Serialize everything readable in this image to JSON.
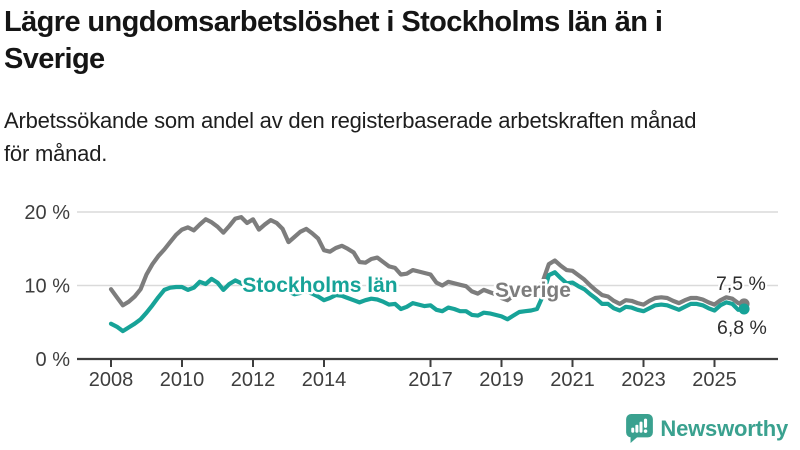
{
  "header": {
    "title_lines": [
      "Lägre ungdomsarbetslöshet i Stockholms län än i",
      "Sverige"
    ],
    "subtitle_lines": [
      "Arbetssökande som andel av den registerbaserade arbetskraften månad",
      "för månad."
    ]
  },
  "footer": {
    "brand": "Newsworthy",
    "brand_color": "#3aa18f",
    "logo_icon": "speech-bubble-bar-chart-exclamation-icon"
  },
  "chart_data": {
    "type": "line",
    "x_unit": "decimal year (monthly data sampled every 2 months)",
    "x_start": 2008.0,
    "x_step_years": 0.16667,
    "ylim": [
      0,
      21.5
    ],
    "grid": "horizontal",
    "legend_position": "inline-labels",
    "yticks": [
      {
        "value": 0,
        "label": "0 %"
      },
      {
        "value": 10,
        "label": "10 %"
      },
      {
        "value": 20,
        "label": "20 %"
      }
    ],
    "xticks": [
      {
        "value": 2008,
        "label": "2008"
      },
      {
        "value": 2010,
        "label": "2010"
      },
      {
        "value": 2012,
        "label": "2012"
      },
      {
        "value": 2014,
        "label": "2014"
      },
      {
        "value": 2017,
        "label": "2017"
      },
      {
        "value": 2019,
        "label": "2019"
      },
      {
        "value": 2021,
        "label": "2021"
      },
      {
        "value": 2023,
        "label": "2023"
      },
      {
        "value": 2025,
        "label": "2025"
      }
    ],
    "series": [
      {
        "key": "sverige",
        "name": "Sverige",
        "color": "#7d7d7d",
        "end_label": "7,5 %",
        "values": [
          9.5,
          8.4,
          7.3,
          7.8,
          8.5,
          9.5,
          11.5,
          12.9,
          14.0,
          14.9,
          15.9,
          16.9,
          17.6,
          17.9,
          17.5,
          18.3,
          19.0,
          18.6,
          18.0,
          17.2,
          18.1,
          19.1,
          19.3,
          18.5,
          19.0,
          17.6,
          18.3,
          18.9,
          18.5,
          17.7,
          15.9,
          16.6,
          17.3,
          17.7,
          17.1,
          16.4,
          14.8,
          14.6,
          15.1,
          15.4,
          15.0,
          14.5,
          13.2,
          13.1,
          13.6,
          13.8,
          13.2,
          12.6,
          12.4,
          11.5,
          11.6,
          12.1,
          11.9,
          11.7,
          11.5,
          10.4,
          10.0,
          10.5,
          10.3,
          10.1,
          9.9,
          9.2,
          8.9,
          9.4,
          9.1,
          8.8,
          8.3,
          8.0,
          8.6,
          9.0,
          8.9,
          9.0,
          9.3,
          10.6,
          12.9,
          13.4,
          12.7,
          12.1,
          12.0,
          11.4,
          10.8,
          10.0,
          9.3,
          8.7,
          8.5,
          7.9,
          7.5,
          8.0,
          7.9,
          7.6,
          7.4,
          7.9,
          8.3,
          8.4,
          8.3,
          7.9,
          7.6,
          8.0,
          8.3,
          8.3,
          8.1,
          7.7,
          7.4,
          8.0,
          8.4,
          8.2,
          7.6,
          7.5
        ]
      },
      {
        "key": "stockholms-lan",
        "name": "Stockholms län",
        "color": "#17a398",
        "end_label": "6,8 %",
        "values": [
          4.8,
          4.4,
          3.8,
          4.3,
          4.8,
          5.4,
          6.3,
          7.3,
          8.4,
          9.4,
          9.7,
          9.8,
          9.8,
          9.4,
          9.7,
          10.5,
          10.2,
          10.9,
          10.4,
          9.4,
          10.2,
          10.7,
          10.3,
          9.7,
          10.3,
          9.5,
          9.9,
          10.1,
          9.9,
          9.6,
          9.2,
          8.8,
          9.0,
          9.2,
          8.9,
          8.5,
          8.0,
          8.3,
          8.7,
          8.6,
          8.3,
          8.0,
          7.7,
          8.0,
          8.2,
          8.1,
          7.8,
          7.4,
          7.5,
          6.8,
          7.1,
          7.6,
          7.4,
          7.2,
          7.3,
          6.7,
          6.5,
          7.0,
          6.8,
          6.5,
          6.5,
          6.0,
          5.9,
          6.3,
          6.2,
          6.0,
          5.8,
          5.4,
          5.9,
          6.4,
          6.5,
          6.6,
          6.8,
          8.6,
          11.4,
          11.8,
          11.0,
          10.3,
          10.4,
          9.9,
          9.5,
          8.8,
          8.2,
          7.5,
          7.5,
          6.9,
          6.6,
          7.1,
          7.0,
          6.7,
          6.5,
          6.9,
          7.3,
          7.4,
          7.3,
          7.0,
          6.7,
          7.1,
          7.5,
          7.5,
          7.3,
          6.9,
          6.6,
          7.3,
          7.7,
          7.5,
          6.7,
          6.8
        ]
      }
    ]
  }
}
